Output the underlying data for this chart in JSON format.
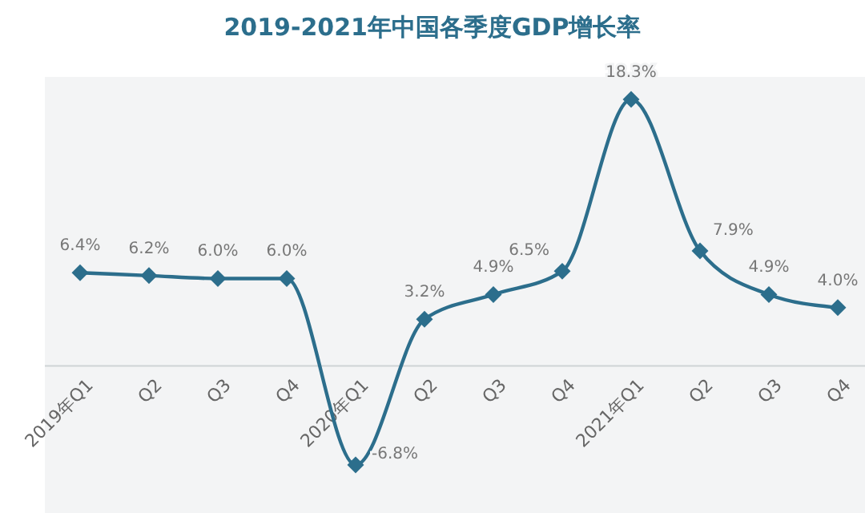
{
  "chart_data": {
    "type": "line",
    "title": "2019-2021年中国各季度GDP增长率",
    "categories": [
      "2019年Q1",
      "Q2",
      "Q3",
      "Q4",
      "2020年Q1",
      "Q2",
      "Q3",
      "Q4",
      "2021年Q1",
      "Q2",
      "Q3",
      "Q4"
    ],
    "series": [
      {
        "color": "#2c6e8c",
        "values": [
          6.4,
          6.2,
          6.0,
          6.0,
          -6.8,
          3.2,
          4.9,
          6.5,
          18.3,
          7.9,
          4.9,
          4.0
        ],
        "value_labels": [
          "6.4%",
          "6.2%",
          "6.0%",
          "6.0%",
          "-6.8%",
          "3.2%",
          "4.9%",
          "6.5%",
          "18.3%",
          "7.9%",
          "4.9%",
          "4.0%"
        ]
      }
    ],
    "marker": "diamond",
    "line_style": "solid"
  }
}
